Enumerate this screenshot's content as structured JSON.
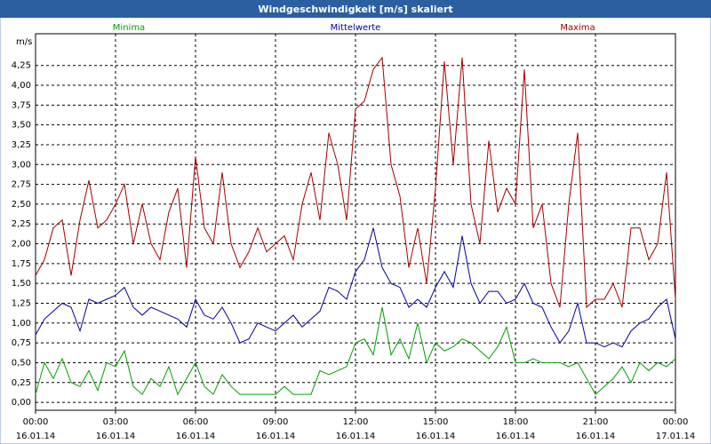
{
  "chart_data": {
    "type": "line",
    "title": "Windgeschwindigkeit [m/s] skaliert",
    "y_label": "m/s",
    "x": [
      0,
      20,
      40,
      60,
      80,
      100,
      120,
      140,
      160,
      180,
      200,
      220,
      240,
      260,
      280,
      300,
      320,
      340,
      360,
      380,
      400,
      420,
      440,
      460,
      480,
      500,
      520,
      540,
      560,
      580,
      600,
      620,
      640,
      660,
      680,
      700,
      720,
      740,
      760,
      780,
      800,
      820,
      840,
      860,
      880,
      900,
      920,
      940,
      960,
      980,
      1000,
      1020,
      1040,
      1060,
      1080,
      1100,
      1120,
      1140,
      1160,
      1180,
      1200,
      1220,
      1240,
      1260,
      1280,
      1300,
      1320,
      1340,
      1360,
      1380,
      1400,
      1420,
      1440
    ],
    "series": [
      {
        "name": "Minima",
        "color": "#00a000",
        "values": [
          0.1,
          0.5,
          0.3,
          0.55,
          0.25,
          0.2,
          0.4,
          0.15,
          0.5,
          0.45,
          0.65,
          0.2,
          0.1,
          0.3,
          0.2,
          0.45,
          0.1,
          0.3,
          0.5,
          0.2,
          0.1,
          0.35,
          0.2,
          0.1,
          0.1,
          0.1,
          0.1,
          0.1,
          0.2,
          0.1,
          0.1,
          0.1,
          0.4,
          0.35,
          0.4,
          0.45,
          0.75,
          0.8,
          0.6,
          1.2,
          0.6,
          0.8,
          0.55,
          1.0,
          0.5,
          0.75,
          0.65,
          0.7,
          0.8,
          0.75,
          0.65,
          0.55,
          0.7,
          0.95,
          0.5,
          0.5,
          0.55,
          0.5,
          0.5,
          0.5,
          0.45,
          0.5,
          0.3,
          0.1,
          0.2,
          0.3,
          0.45,
          0.25,
          0.5,
          0.4,
          0.5,
          0.45,
          0.55
        ]
      },
      {
        "name": "Mittelwerte",
        "color": "#0000a0",
        "values": [
          0.85,
          1.05,
          1.15,
          1.25,
          1.2,
          0.9,
          1.3,
          1.25,
          1.3,
          1.35,
          1.45,
          1.2,
          1.1,
          1.2,
          1.15,
          1.1,
          1.05,
          0.95,
          1.3,
          1.1,
          1.05,
          1.2,
          1.0,
          0.75,
          0.8,
          1.0,
          0.95,
          0.9,
          1.0,
          1.1,
          0.95,
          1.05,
          1.15,
          1.45,
          1.4,
          1.3,
          1.65,
          1.8,
          2.2,
          1.7,
          1.5,
          1.45,
          1.2,
          1.3,
          1.2,
          1.45,
          1.65,
          1.45,
          2.1,
          1.5,
          1.25,
          1.4,
          1.4,
          1.25,
          1.3,
          1.5,
          1.25,
          1.2,
          0.95,
          0.75,
          0.9,
          1.25,
          0.75,
          0.75,
          0.7,
          0.75,
          0.7,
          0.9,
          1.0,
          1.05,
          1.2,
          1.3,
          0.8
        ]
      },
      {
        "name": "Maxima",
        "color": "#a00000",
        "values": [
          1.6,
          1.8,
          2.2,
          2.3,
          1.6,
          2.3,
          2.8,
          2.2,
          2.3,
          2.5,
          2.75,
          2.0,
          2.5,
          2.0,
          1.8,
          2.4,
          2.7,
          1.7,
          3.1,
          2.2,
          2.0,
          2.9,
          2.0,
          1.7,
          1.9,
          2.2,
          1.9,
          2.0,
          2.1,
          1.8,
          2.5,
          2.9,
          2.3,
          3.4,
          3.0,
          2.3,
          3.7,
          3.8,
          4.2,
          4.35,
          3.0,
          2.6,
          1.7,
          2.2,
          1.5,
          2.7,
          4.3,
          3.0,
          4.35,
          2.5,
          2.0,
          3.3,
          2.4,
          2.7,
          2.5,
          4.2,
          2.2,
          2.5,
          1.5,
          1.2,
          2.5,
          3.4,
          1.2,
          1.3,
          1.3,
          1.5,
          1.2,
          2.2,
          2.2,
          1.8,
          2.0,
          2.9,
          1.3
        ]
      }
    ],
    "xlim": [
      0,
      1440
    ],
    "ylim": [
      -0.1,
      4.65
    ],
    "xticks": [
      {
        "value": 0,
        "label": "00:00",
        "date": "16.01.14"
      },
      {
        "value": 180,
        "label": "03:00",
        "date": "16.01.14"
      },
      {
        "value": 360,
        "label": "06:00",
        "date": "16.01.14"
      },
      {
        "value": 540,
        "label": "09:00",
        "date": "16.01.14"
      },
      {
        "value": 720,
        "label": "12:00",
        "date": "16.01.14"
      },
      {
        "value": 900,
        "label": "15:00",
        "date": "16.01.14"
      },
      {
        "value": 1080,
        "label": "18:00",
        "date": "16.01.14"
      },
      {
        "value": 1260,
        "label": "21:00",
        "date": "16.01.14"
      },
      {
        "value": 1440,
        "label": "00:00",
        "date": "17.01.14"
      }
    ],
    "yticks": [
      {
        "value": 0,
        "label": "0,00"
      },
      {
        "value": 0.25,
        "label": "0,25"
      },
      {
        "value": 0.5,
        "label": "0,50"
      },
      {
        "value": 0.75,
        "label": "0,75"
      },
      {
        "value": 1,
        "label": "1,00"
      },
      {
        "value": 1.25,
        "label": "1,25"
      },
      {
        "value": 1.5,
        "label": "1,50"
      },
      {
        "value": 1.75,
        "label": "1,75"
      },
      {
        "value": 2,
        "label": "2,00"
      },
      {
        "value": 2.25,
        "label": "2,25"
      },
      {
        "value": 2.5,
        "label": "2,50"
      },
      {
        "value": 2.75,
        "label": "2,75"
      },
      {
        "value": 3,
        "label": "3,00"
      },
      {
        "value": 3.25,
        "label": "3,25"
      },
      {
        "value": 3.5,
        "label": "3,50"
      },
      {
        "value": 3.75,
        "label": "3,75"
      },
      {
        "value": 4,
        "label": "4,00"
      },
      {
        "value": 4.25,
        "label": "4,25"
      }
    ],
    "grid": true
  }
}
